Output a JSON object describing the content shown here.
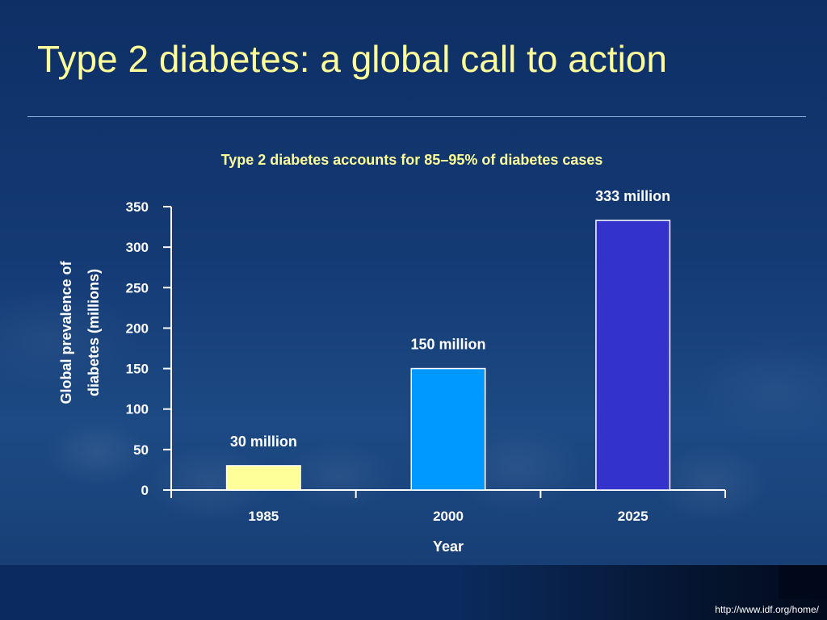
{
  "slide": {
    "title": "Type 2 diabetes: a global call to action",
    "source": "http://www.idf.org/home/"
  },
  "colors": {
    "title_text": "#ffff99",
    "axis": "#ffffff",
    "text": "#ffffff"
  },
  "chart_data": {
    "type": "bar",
    "title": "Type 2 diabetes accounts for 85–95% of diabetes cases",
    "xlabel": "Year",
    "ylabel": "Global prevalence of diabetes (millions)",
    "ylim": [
      0,
      350
    ],
    "yticks": [
      0,
      50,
      100,
      150,
      200,
      250,
      300,
      350
    ],
    "categories": [
      "1985",
      "2000",
      "2025"
    ],
    "values": [
      30,
      150,
      333
    ],
    "data_labels": [
      "30 million",
      "150 million",
      "333 million"
    ],
    "bar_colors": [
      "#ffff99",
      "#0099ff",
      "#3333cc"
    ],
    "grid": false,
    "legend": "none"
  }
}
